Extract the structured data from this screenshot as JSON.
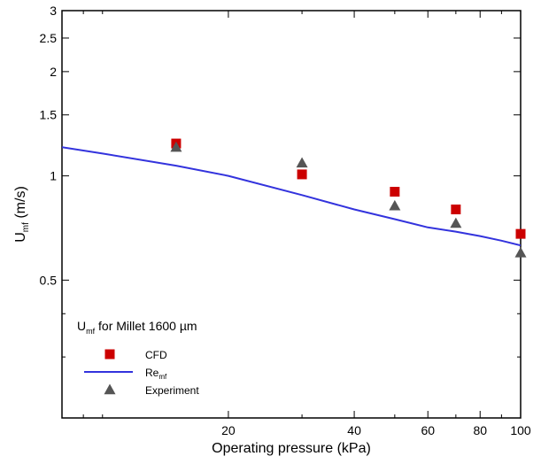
{
  "chart_data": {
    "type": "scatter",
    "x_scale": "log",
    "y_scale": "log",
    "xlim": [
      8,
      100
    ],
    "ylim": [
      0.2,
      3
    ],
    "grid": false,
    "xlabel": "Operating pressure (kPa)",
    "ylabel": {
      "main": "U",
      "sub": "mf",
      "rest": " (m/s)"
    },
    "x_ticks": [
      {
        "value": 20,
        "label": "20"
      },
      {
        "value": 40,
        "label": "40"
      },
      {
        "value": 60,
        "label": "60"
      },
      {
        "value": 80,
        "label": "80"
      },
      {
        "value": 100,
        "label": "100"
      }
    ],
    "x_minor_ticks": [
      9,
      10,
      30,
      50,
      70,
      90
    ],
    "y_ticks": [
      {
        "value": 0.5,
        "label": "0.5"
      },
      {
        "value": 1,
        "label": "1"
      },
      {
        "value": 1.5,
        "label": "1.5"
      },
      {
        "value": 2,
        "label": "2"
      },
      {
        "value": 2.5,
        "label": "2.5"
      },
      {
        "value": 3,
        "label": "3"
      }
    ],
    "y_minor_ticks": [
      0.3,
      0.4
    ],
    "legend": {
      "title": {
        "main": "U",
        "sub": "mf",
        "rest": " for Millet 1600 µm"
      },
      "placement": "bottom-left"
    },
    "series": [
      {
        "name": "CFD",
        "label": {
          "main": "CFD",
          "sub": ""
        },
        "kind": "marker",
        "marker": "square",
        "color": "#cc0000",
        "x": [
          15,
          30,
          50,
          70,
          100
        ],
        "y": [
          1.24,
          1.01,
          0.9,
          0.8,
          0.68
        ]
      },
      {
        "name": "Re_mf",
        "label": {
          "main": "Re",
          "sub": "mf"
        },
        "kind": "line",
        "color": "#3333dd",
        "x": [
          8,
          10,
          15,
          20,
          30,
          40,
          50,
          60,
          70,
          80,
          90,
          100
        ],
        "y": [
          1.21,
          1.16,
          1.07,
          1.0,
          0.88,
          0.8,
          0.75,
          0.71,
          0.69,
          0.67,
          0.65,
          0.63
        ]
      },
      {
        "name": "Experiment",
        "label": {
          "main": "Experiment",
          "sub": ""
        },
        "kind": "marker",
        "marker": "triangle",
        "color": "#555555",
        "x": [
          15,
          30,
          50,
          70,
          100
        ],
        "y": [
          1.21,
          1.09,
          0.82,
          0.73,
          0.6
        ]
      }
    ]
  }
}
